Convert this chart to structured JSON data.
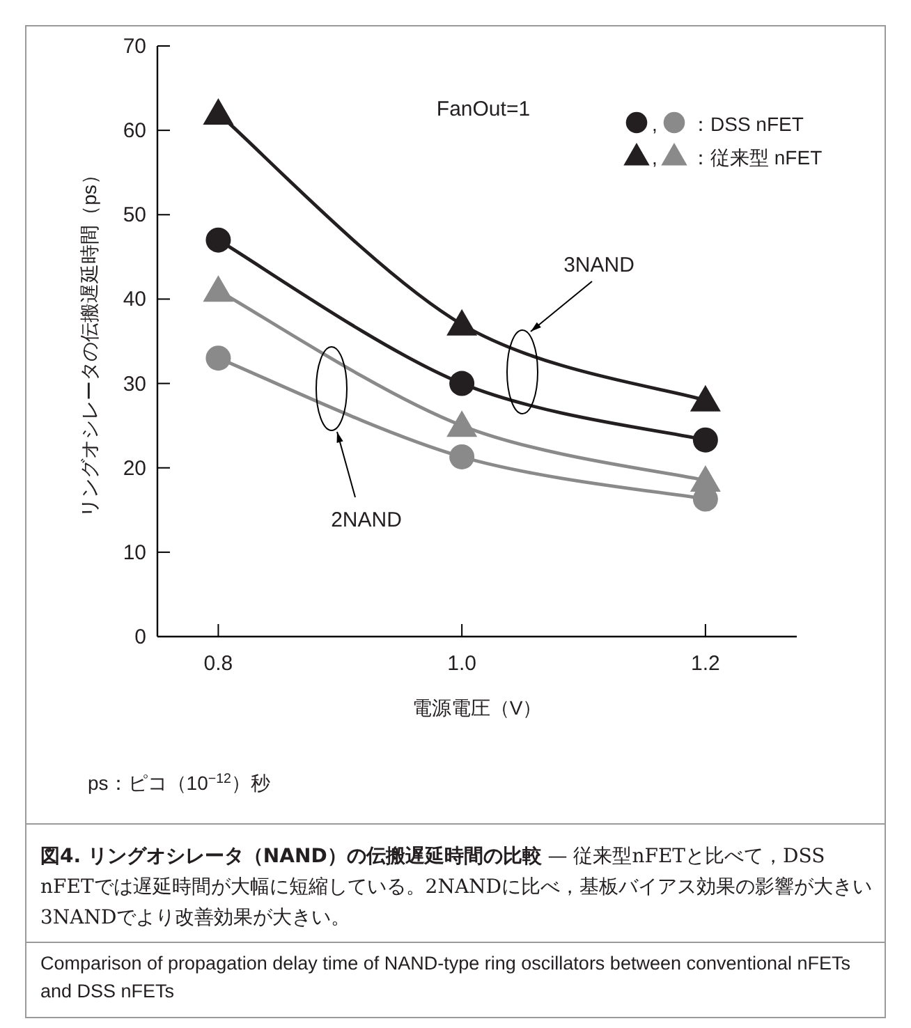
{
  "chart_data": {
    "type": "line",
    "title": "図4. リングオシレータ（NAND）の伝搬遅延時間の比較",
    "subtitle": "— 従来型nFETと比べて，DSS nFETでは遅延時間が大幅に短縮している。2NANDに比べ，基板バイアス効果の影響が大きい3NANDでより改善効果が大きい。",
    "xlabel": "電源電圧（V）",
    "ylabel": "リングオシレータの伝搬遅延時間（ps）",
    "x": [
      0.8,
      1.0,
      1.2
    ],
    "xlim": [
      0.75,
      1.275
    ],
    "xticks": [
      0.8,
      {
        "value": 1.0,
        "label": "1.0"
      },
      1.2
    ],
    "ylim": [
      0,
      70
    ],
    "yticks": [
      0,
      10,
      20,
      30,
      40,
      50,
      60,
      70
    ],
    "grid": false,
    "legend": "top right",
    "series": [
      {
        "color": "#231f20",
        "marker": "triangle",
        "values": [
          62,
          37,
          28
        ]
      },
      {
        "color": "#231f20",
        "marker": "circle",
        "values": [
          47,
          30,
          23.3
        ]
      },
      {
        "name": "：従来型 nFET",
        "color": "#8a8a8a",
        "marker": "triangle",
        "values": [
          41,
          25,
          18.5
        ]
      },
      {
        "name": "：DSS nFET",
        "color": "#8a8a8a",
        "marker": "circle",
        "values": [
          33,
          21.3,
          16.3
        ]
      }
    ],
    "annotations": [
      "FanOut=1",
      "3NAND",
      "2NAND",
      "ps：ピコ（10$^{−12}$）秒",
      "Comparison of propagation delay time of NAND-type ring oscillators between conventional nFETs and DSS nFETs",
      ",",
      ","
    ]
  }
}
